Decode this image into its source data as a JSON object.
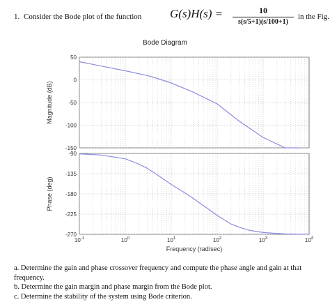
{
  "question": {
    "number": "1.",
    "prefix": "Consider the Bode plot of the function",
    "function_lhs": "G(s)H(s) =",
    "numerator": "10",
    "denominator": "s(s/5+1)(s/100+1)",
    "suffix": "in the Fig."
  },
  "chart_data": {
    "type": "line",
    "title": "Bode Diagram",
    "xlabel": "Frequency (rad/sec)",
    "x_scale": "log",
    "xlim": [
      0.1,
      10000
    ],
    "x_ticks": [
      "10^-1",
      "10^0",
      "10^1",
      "10^2",
      "10^3",
      "10^4"
    ],
    "grid": true,
    "panels": [
      {
        "name": "magnitude",
        "ylabel": "Magnitude (dB)",
        "ylim": [
          -150,
          50
        ],
        "y_ticks": [
          "50",
          "0",
          "-50",
          "-100",
          "-150"
        ],
        "series": [
          {
            "x": [
              0.1,
              0.3,
              1,
              3,
              5,
              10,
              30,
              100,
              300,
              1000,
              3000,
              6000
            ],
            "y": [
              40,
              30.5,
              20,
              9.6,
              3,
              -7,
              -27,
              -53,
              -91,
              -127,
              -160,
              -175
            ]
          }
        ]
      },
      {
        "name": "phase",
        "ylabel": "Phase (deg)",
        "ylim": [
          -270,
          -90
        ],
        "y_ticks": [
          "-90",
          "-135",
          "-180",
          "-225",
          "-270"
        ],
        "series": [
          {
            "x": [
              0.1,
              0.3,
              1,
              2,
              3,
              5,
              10,
              20,
              30,
              50,
              100,
              200,
              300,
              500,
              1000,
              3000,
              10000
            ],
            "y": [
              -91,
              -93.6,
              -102,
              -114,
              -123,
              -138,
              -159,
              -178,
              -190,
              -206,
              -228,
              -247,
              -254,
              -261,
              -266,
              -269,
              -270
            ]
          }
        ]
      }
    ],
    "color": "#8b8be0"
  },
  "subquestions": [
    "a. Determine the gain and phase crossover frequency and compute the phase angle and gain at that frequency.",
    "b. Determine the gain margin and phase margin from the Bode plot.",
    "c. Determine the stability of the system using Bode criterion."
  ]
}
